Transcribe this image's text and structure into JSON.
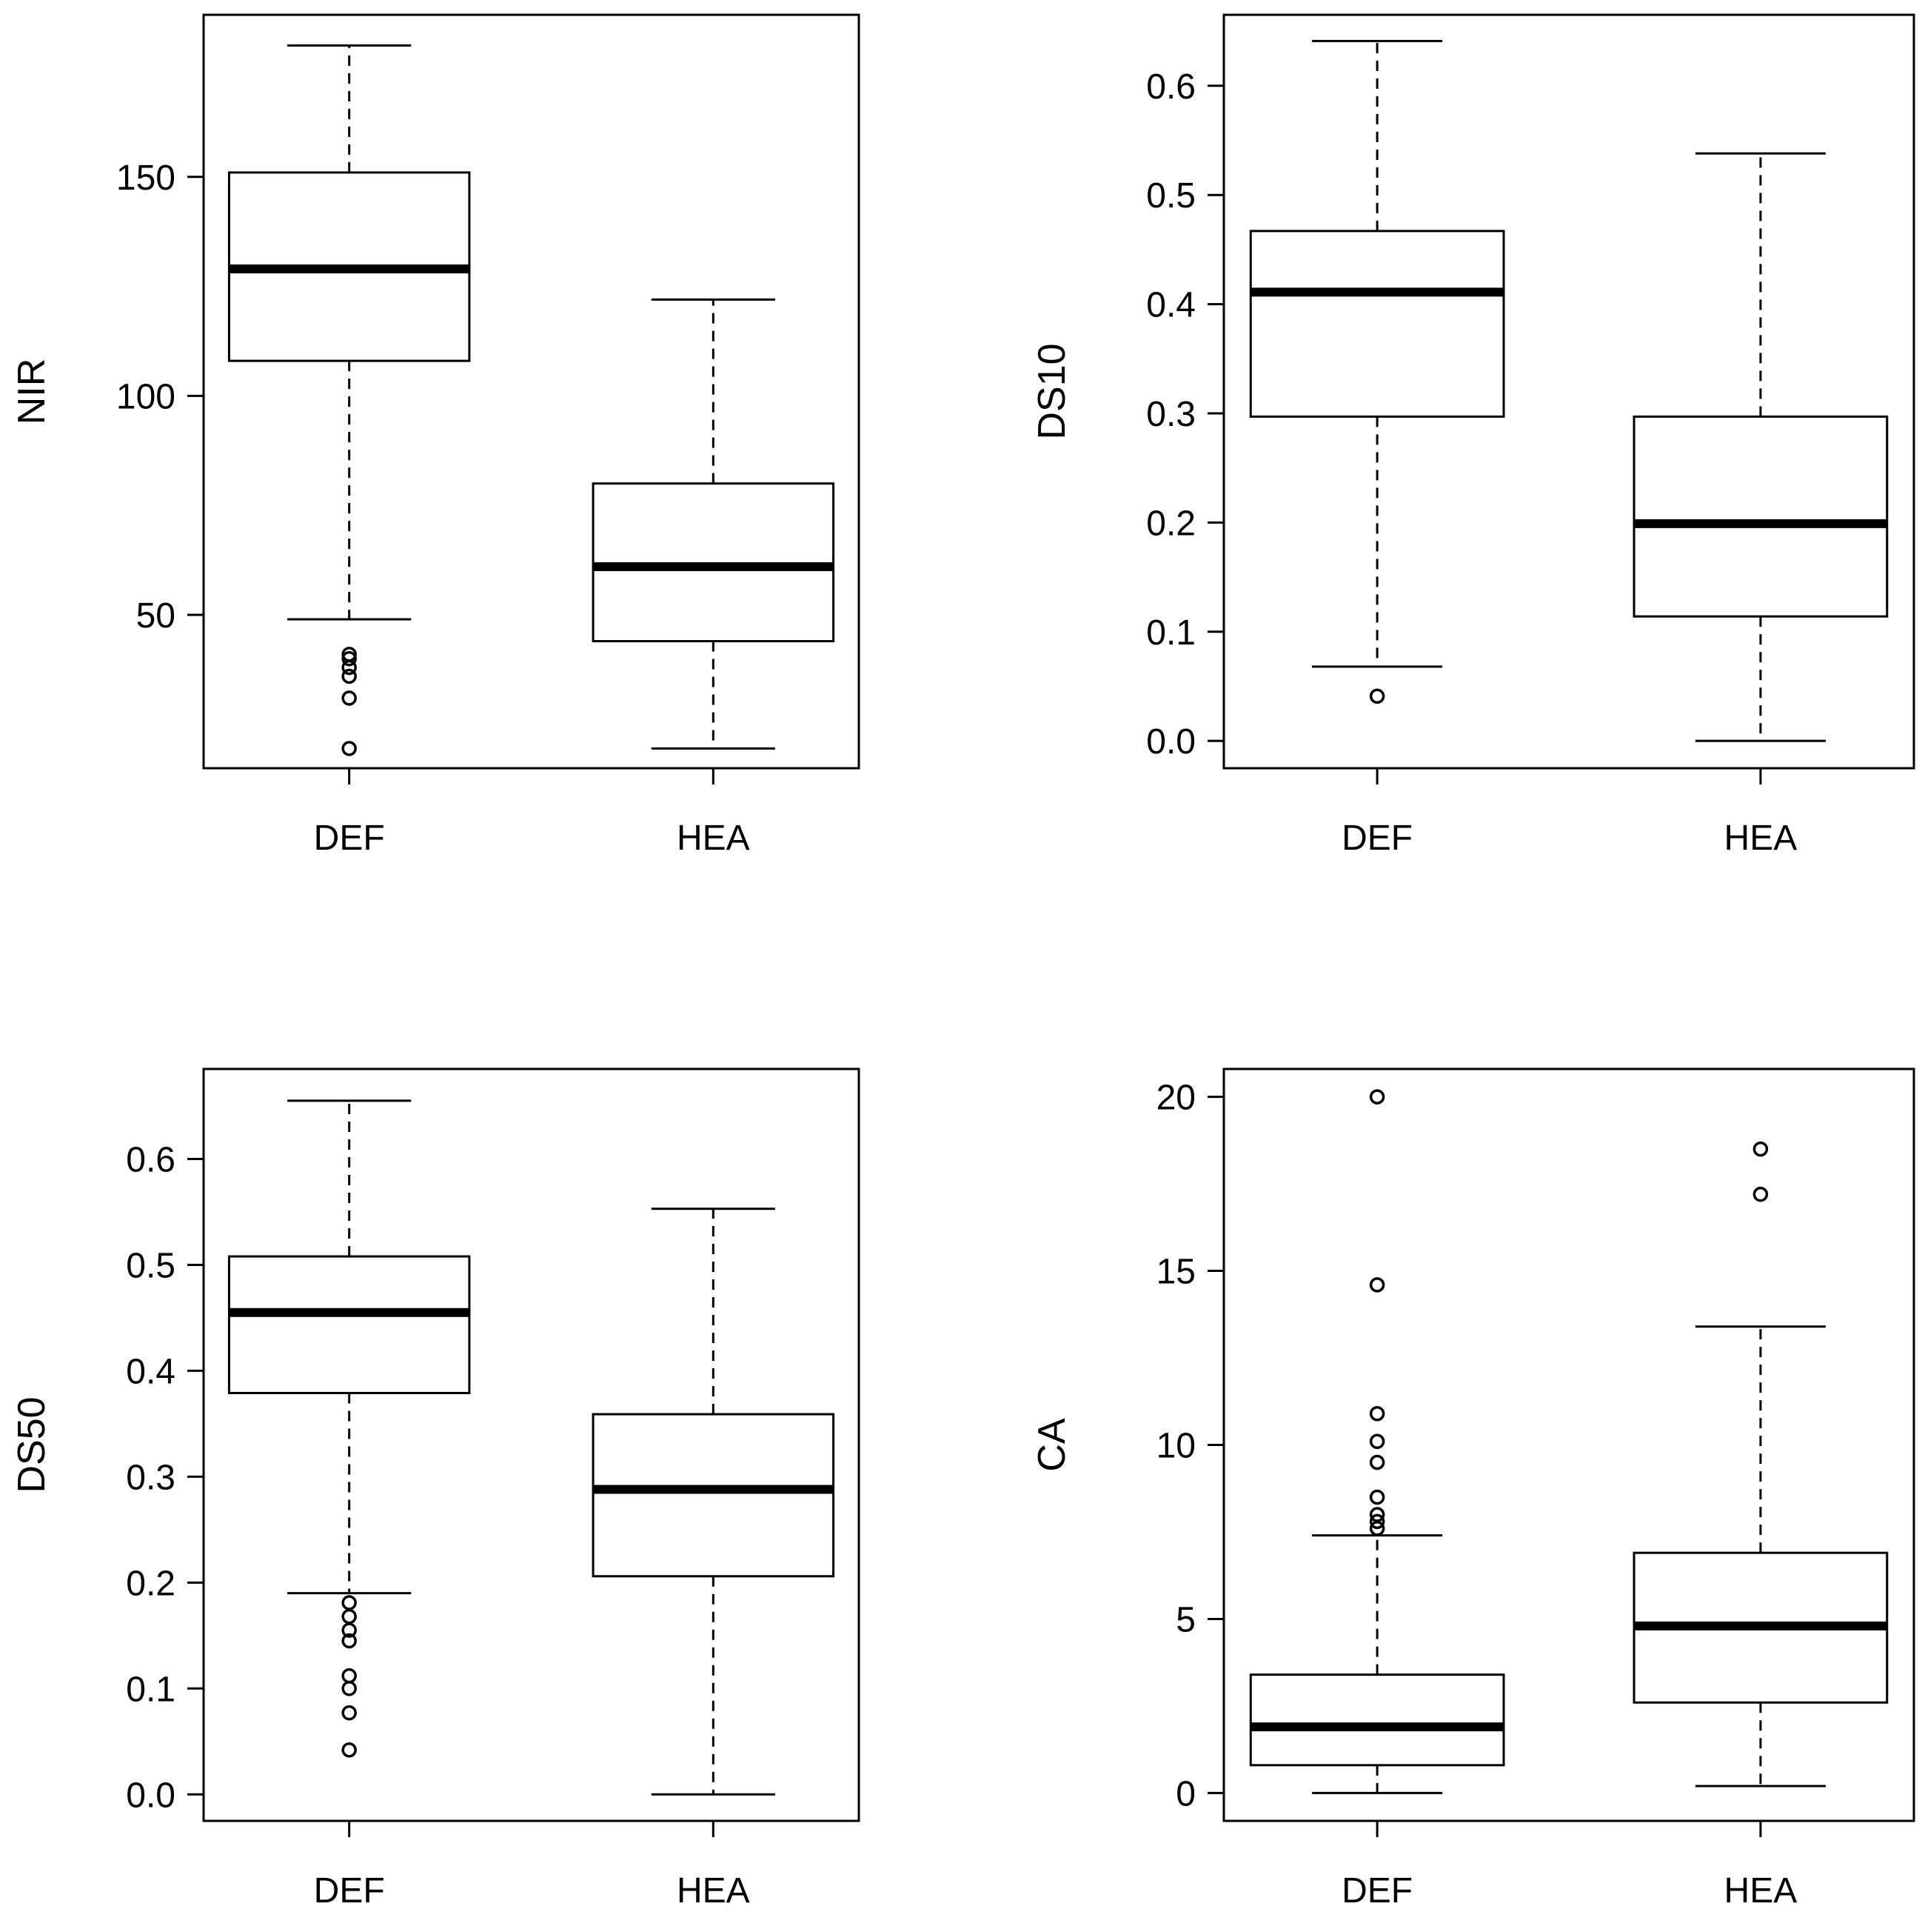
{
  "chart_data": [
    {
      "type": "boxplot",
      "ylabel": "NIR",
      "categories": [
        "DEF",
        "HEA"
      ],
      "ylim": [
        15,
        187
      ],
      "yticks": [
        50,
        100,
        150
      ],
      "ytick_labels": [
        "50",
        "100",
        "150"
      ],
      "boxes": [
        {
          "name": "DEF",
          "whisker_low": 49,
          "q1": 108,
          "median": 129,
          "q3": 151,
          "whisker_high": 180,
          "outliers": [
            41,
            40,
            38,
            36,
            31,
            19.5
          ]
        },
        {
          "name": "HEA",
          "whisker_low": 19.5,
          "q1": 44,
          "median": 61,
          "q3": 80,
          "whisker_high": 122,
          "outliers": []
        }
      ]
    },
    {
      "type": "boxplot",
      "ylabel": "DS10",
      "categories": [
        "DEF",
        "HEA"
      ],
      "ylim": [
        -0.025,
        0.665
      ],
      "yticks": [
        0.0,
        0.1,
        0.2,
        0.3,
        0.4,
        0.5,
        0.6
      ],
      "ytick_labels": [
        "0.0",
        "0.1",
        "0.2",
        "0.3",
        "0.4",
        "0.5",
        "0.6"
      ],
      "boxes": [
        {
          "name": "DEF",
          "whisker_low": 0.068,
          "q1": 0.297,
          "median": 0.411,
          "q3": 0.467,
          "whisker_high": 0.641,
          "outliers": [
            0.041
          ]
        },
        {
          "name": "HEA",
          "whisker_low": 0.0,
          "q1": 0.114,
          "median": 0.199,
          "q3": 0.297,
          "whisker_high": 0.538,
          "outliers": []
        }
      ]
    },
    {
      "type": "boxplot",
      "ylabel": "DS50",
      "categories": [
        "DEF",
        "HEA"
      ],
      "ylim": [
        -0.025,
        0.685
      ],
      "yticks": [
        0.0,
        0.1,
        0.2,
        0.3,
        0.4,
        0.5,
        0.6
      ],
      "ytick_labels": [
        "0.0",
        "0.1",
        "0.2",
        "0.3",
        "0.4",
        "0.5",
        "0.6"
      ],
      "boxes": [
        {
          "name": "DEF",
          "whisker_low": 0.19,
          "q1": 0.379,
          "median": 0.455,
          "q3": 0.508,
          "whisker_high": 0.655,
          "outliers": [
            0.181,
            0.168,
            0.155,
            0.145,
            0.112,
            0.1,
            0.077,
            0.042
          ]
        },
        {
          "name": "HEA",
          "whisker_low": 0.0,
          "q1": 0.206,
          "median": 0.288,
          "q3": 0.359,
          "whisker_high": 0.553,
          "outliers": []
        }
      ]
    },
    {
      "type": "boxplot",
      "ylabel": "CA",
      "categories": [
        "DEF",
        "HEA"
      ],
      "ylim": [
        -0.8,
        20.8
      ],
      "yticks": [
        0,
        5,
        10,
        15,
        20
      ],
      "ytick_labels": [
        "0",
        "5",
        "10",
        "15",
        "20"
      ],
      "boxes": [
        {
          "name": "DEF",
          "whisker_low": 0.0,
          "q1": 0.8,
          "median": 1.9,
          "q3": 3.4,
          "whisker_high": 7.4,
          "outliers": [
            20.0,
            14.6,
            10.9,
            10.1,
            9.5,
            8.5,
            8.0,
            7.8,
            7.6
          ]
        },
        {
          "name": "HEA",
          "whisker_low": 0.2,
          "q1": 2.6,
          "median": 4.8,
          "q3": 6.9,
          "whisker_high": 13.4,
          "outliers": [
            18.5,
            17.2
          ]
        }
      ]
    }
  ]
}
